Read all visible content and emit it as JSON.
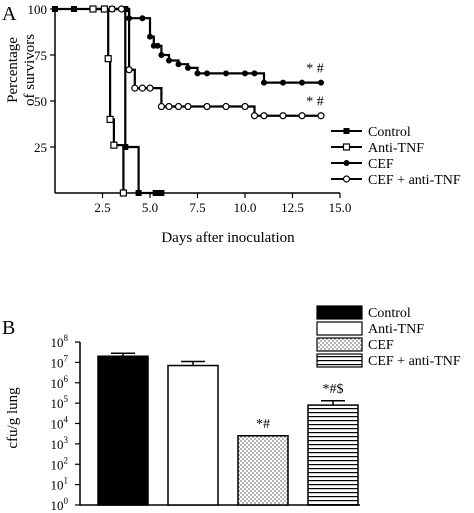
{
  "chart_data": [
    {
      "panel": "A",
      "type": "line",
      "ylabel": [
        "Percentage",
        "of survivors"
      ],
      "xlabel": "Days after inoculation",
      "xlim": [
        0,
        15
      ],
      "ylim": [
        0,
        100
      ],
      "xticks": [
        "2.5",
        "5.0",
        "7.5",
        "10.0",
        "12.5",
        "15.0"
      ],
      "yticks": [
        "25",
        "50",
        "75",
        "100"
      ],
      "legend_position": "bottom-right",
      "series": [
        {
          "name": "Control",
          "marker": "filled-square",
          "color": "#000000",
          "x": [
            0,
            1,
            2,
            3,
            3.7,
            3.7,
            4.4,
            5.3,
            5.6
          ],
          "y": [
            100,
            100,
            100,
            100,
            100,
            25,
            0,
            0,
            0
          ]
        },
        {
          "name": "Anti-TNF",
          "marker": "open-square",
          "color": "#000000",
          "x": [
            2,
            2.6,
            2.8,
            2.9,
            3.1,
            3.6
          ],
          "y": [
            100,
            100,
            73,
            40,
            26,
            0
          ]
        },
        {
          "name": "CEF",
          "marker": "filled-circle",
          "color": "#000000",
          "x": [
            3.0,
            3.5,
            3.9,
            4.6,
            5.0,
            5.2,
            5.4,
            5.6,
            6.0,
            6.5,
            7.0,
            7.5,
            8.0,
            9.0,
            10.0,
            10.5,
            11.0,
            12.0,
            13.0,
            14.0
          ],
          "y": [
            100,
            100,
            95,
            95,
            85,
            80,
            80,
            75,
            72,
            70,
            68,
            65,
            65,
            65,
            65,
            65,
            60,
            60,
            60,
            60
          ]
        },
        {
          "name": "CEF + anti-TNF",
          "marker": "open-circle",
          "color": "#000000",
          "x": [
            3.0,
            3.5,
            3.9,
            4.2,
            4.6,
            5.0,
            5.6,
            6.0,
            6.5,
            7.0,
            8.0,
            9.0,
            10.0,
            10.5,
            11.0,
            12.0,
            13.0,
            14.0
          ],
          "y": [
            100,
            100,
            67,
            57,
            57,
            57,
            47,
            47,
            47,
            47,
            47,
            47,
            47,
            42,
            42,
            42,
            42,
            42
          ]
        }
      ],
      "annotations": [
        {
          "text": "* #",
          "series": "CEF",
          "x": 14,
          "y": 60
        },
        {
          "text": "* #",
          "series": "CEF + anti-TNF",
          "x": 14,
          "y": 42
        }
      ]
    },
    {
      "panel": "B",
      "type": "bar",
      "ylabel": "cfu/g lung",
      "yscale": "log",
      "ylim": [
        1,
        100000000
      ],
      "ytick_exponents": [
        "0",
        "1",
        "2",
        "3",
        "4",
        "5",
        "6",
        "7",
        "8"
      ],
      "legend_position": "top-right",
      "categories": [
        "Control",
        "Anti-TNF",
        "CEF",
        "CEF + anti-TNF"
      ],
      "values": [
        20000000,
        7000000,
        2500,
        80000
      ],
      "error_upper": [
        28000000,
        11000000,
        2500,
        130000
      ],
      "fills": [
        "solid-black",
        "white",
        "dotted",
        "horizontal-stripes"
      ],
      "annotations": [
        "",
        "",
        "*#",
        "*#$"
      ]
    }
  ]
}
